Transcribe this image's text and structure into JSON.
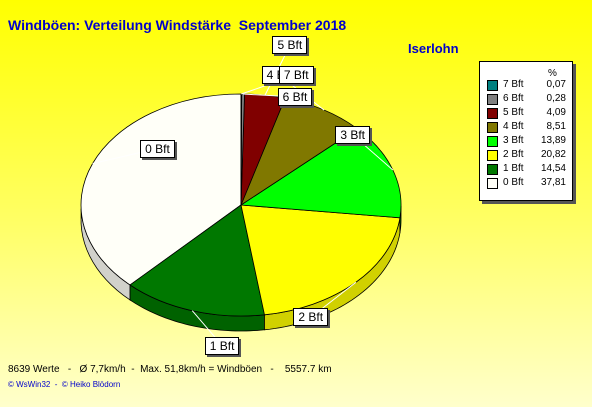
{
  "title": "Windböen: Verteilung Windstärke  September 2018",
  "station": "Iserlohn",
  "legend_header": "%",
  "footer": "8639 Werte   -   Ø 7,7km/h  -  Max. 51,8km/h = Windböen   -    5557.7 km",
  "copyright": "© WsWin32  -  © Heiko Blödorn",
  "chart_data": {
    "type": "pie",
    "slices": [
      {
        "label": "0 Bft",
        "value": 37.81,
        "value_text": "37,81",
        "color": "#fffff8"
      },
      {
        "label": "1 Bft",
        "value": 14.54,
        "value_text": "14,54",
        "color": "#007800"
      },
      {
        "label": "2 Bft",
        "value": 20.82,
        "value_text": "20,82",
        "color": "#ffff00"
      },
      {
        "label": "3 Bft",
        "value": 13.89,
        "value_text": "13,89",
        "color": "#00ff00"
      },
      {
        "label": "4 Bft",
        "value": 8.51,
        "value_text": "8,51",
        "color": "#807800"
      },
      {
        "label": "5 Bft",
        "value": 4.09,
        "value_text": "4,09",
        "color": "#800000"
      },
      {
        "label": "6 Bft",
        "value": 0.28,
        "value_text": "0,28",
        "color": "#808080"
      },
      {
        "label": "7 Bft",
        "value": 0.07,
        "value_text": "0,07",
        "color": "#008080"
      }
    ],
    "legend_order": [
      "7 Bft",
      "6 Bft",
      "5 Bft",
      "4 Bft",
      "3 Bft",
      "2 Bft",
      "1 Bft",
      "0 Bft"
    ],
    "legend_placement": "right"
  }
}
